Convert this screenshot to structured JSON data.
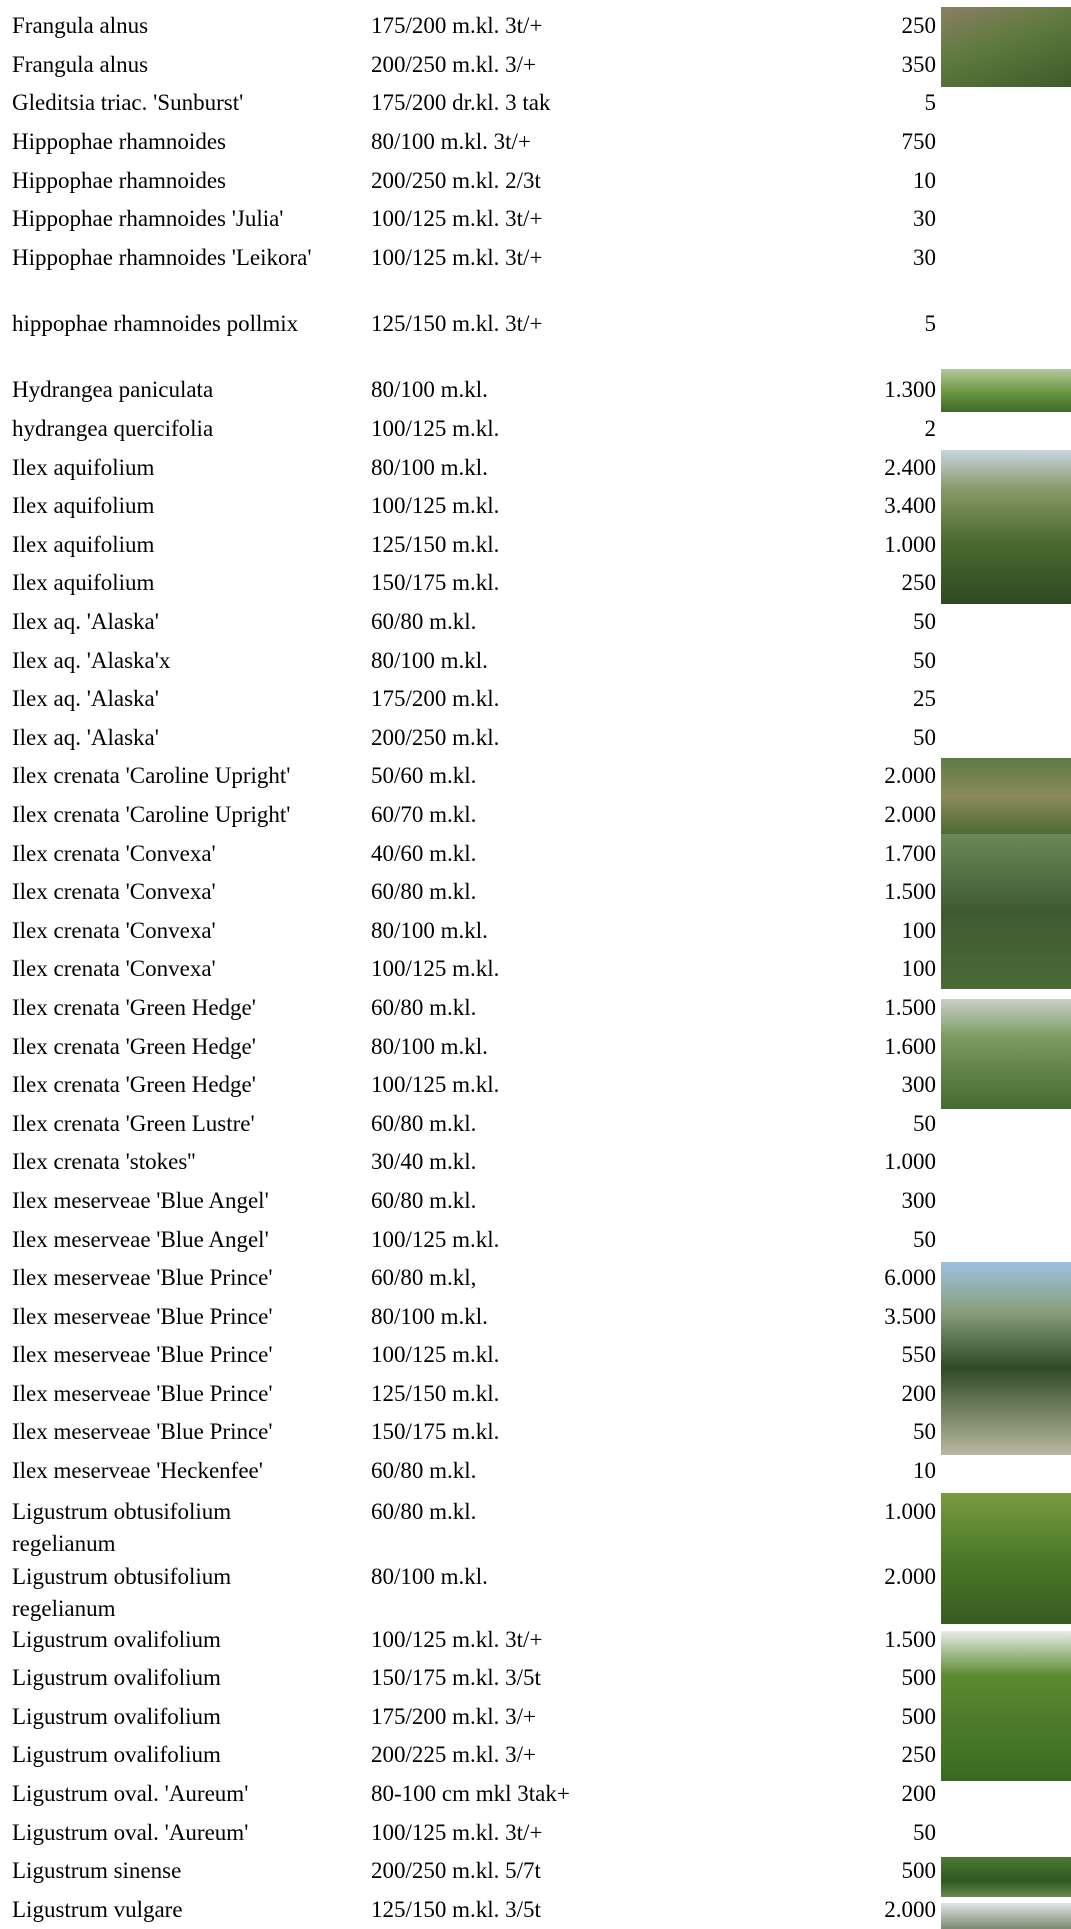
{
  "table": {
    "rows": [
      [
        "Frangula alnus",
        "175/200 m.kl. 3t/+",
        "250"
      ],
      [
        "Frangula alnus",
        "200/250 m.kl. 3/+",
        "350"
      ],
      [
        "Gleditsia triac. 'Sunburst'",
        "175/200 dr.kl. 3 tak",
        "5"
      ],
      [
        "Hippophae rhamnoides",
        "80/100 m.kl. 3t/+",
        "750"
      ],
      [
        "Hippophae rhamnoides",
        "200/250 m.kl. 2/3t",
        "10"
      ],
      [
        "Hippophae rhamnoides 'Julia'",
        "100/125 m.kl. 3t/+",
        "30"
      ],
      [
        "Hippophae rhamnoides 'Leikora'",
        "100/125 m.kl. 3t/+",
        "30"
      ],
      [
        "hippophae rhamnoides pollmix",
        "125/150 m.kl. 3t/+",
        "5"
      ],
      [
        "Hydrangea paniculata",
        "80/100 m.kl.",
        "1.300"
      ],
      [
        "hydrangea quercifolia",
        "100/125 m.kl.",
        "2"
      ],
      [
        "Ilex aquifolium",
        "80/100 m.kl.",
        "2.400"
      ],
      [
        "Ilex aquifolium",
        "100/125 m.kl.",
        "3.400"
      ],
      [
        "Ilex aquifolium",
        "125/150 m.kl.",
        "1.000"
      ],
      [
        "Ilex aquifolium",
        "150/175 m.kl.",
        "250"
      ],
      [
        "Ilex aq. 'Alaska'",
        "60/80 m.kl.",
        "50"
      ],
      [
        "Ilex aq. 'Alaska'x",
        "80/100 m.kl.",
        "50"
      ],
      [
        "Ilex aq. 'Alaska'",
        "175/200 m.kl.",
        "25"
      ],
      [
        "Ilex aq. 'Alaska'",
        "200/250 m.kl.",
        "50"
      ],
      [
        "Ilex crenata 'Caroline Upright'",
        "50/60 m.kl.",
        "2.000"
      ],
      [
        "Ilex crenata 'Caroline Upright'",
        "60/70 m.kl.",
        "2.000"
      ],
      [
        "Ilex crenata 'Convexa'",
        "40/60 m.kl.",
        "1.700"
      ],
      [
        "Ilex crenata 'Convexa'",
        "60/80 m.kl.",
        "1.500"
      ],
      [
        "Ilex crenata 'Convexa'",
        "80/100 m.kl.",
        "100"
      ],
      [
        "Ilex crenata 'Convexa'",
        "100/125 m.kl.",
        "100"
      ],
      [
        "Ilex crenata 'Green Hedge'",
        "60/80 m.kl.",
        "1.500"
      ],
      [
        "Ilex crenata 'Green Hedge'",
        "80/100 m.kl.",
        "1.600"
      ],
      [
        "Ilex crenata 'Green Hedge'",
        "100/125 m.kl.",
        "300"
      ],
      [
        "Ilex crenata 'Green Lustre'",
        "60/80 m.kl.",
        "50"
      ],
      [
        "Ilex crenata 'stokes''",
        "30/40 m.kl.",
        "1.000"
      ],
      [
        "Ilex meserveae 'Blue Angel'",
        "60/80 m.kl.",
        "300"
      ],
      [
        "Ilex meserveae 'Blue Angel'",
        "100/125 m.kl.",
        "50"
      ],
      [
        "Ilex meserveae 'Blue Prince'",
        "60/80 m.kl,",
        "6.000"
      ],
      [
        "Ilex meserveae 'Blue Prince'",
        "80/100 m.kl.",
        "3.500"
      ],
      [
        "Ilex meserveae 'Blue Prince'",
        "100/125 m.kl.",
        "550"
      ],
      [
        "Ilex meserveae 'Blue Prince'",
        "125/150 m.kl.",
        "200"
      ],
      [
        "Ilex meserveae 'Blue Prince'",
        "150/175 m.kl.",
        "50"
      ],
      [
        "Ilex meserveae 'Heckenfee'",
        "60/80 m.kl.",
        "10"
      ],
      [
        "Ligustrum obtusifolium regelianum",
        "60/80 m.kl.",
        "1.000"
      ],
      [
        "Ligustrum obtusifolium regelianum",
        "80/100 m.kl.",
        "2.000"
      ],
      [
        "Ligustrum ovalifolium",
        "100/125 m.kl. 3t/+",
        "1.500"
      ],
      [
        "Ligustrum ovalifolium",
        "150/175 m.kl. 3/5t",
        "500"
      ],
      [
        "Ligustrum ovalifolium",
        "175/200 m.kl. 3/+",
        "500"
      ],
      [
        "Ligustrum ovalifolium",
        "200/225 m.kl. 3/+",
        "250"
      ],
      [
        "Ligustrum oval. 'Aureum'",
        "80-100 cm mkl 3tak+",
        "200"
      ],
      [
        "Ligustrum oval. 'Aureum'",
        "100/125 m.kl. 3t/+",
        "50"
      ],
      [
        "Ligustrum sinense",
        "200/250 m.kl. 5/7t",
        "500"
      ],
      [
        "Ligustrum vulgare",
        "125/150 m.kl. 3/5t",
        "2.000"
      ]
    ]
  }
}
